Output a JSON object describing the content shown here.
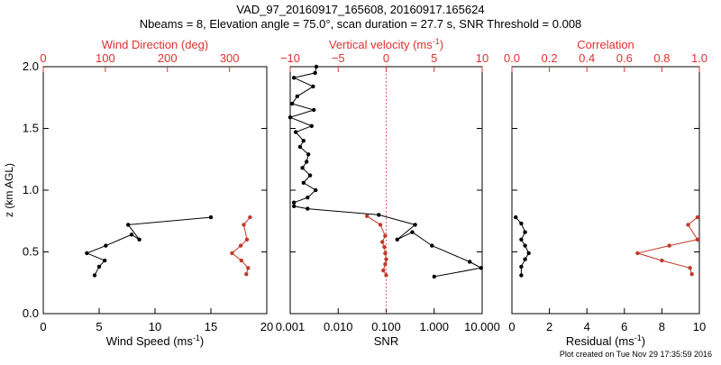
{
  "figure": {
    "title_line1": "VAD_97_20160917_165608, 20160917.165624",
    "title_line2": "Nbeams = 8, Elevation angle = 75.0°, scan duration = 27.7 s, SNR Threshold = 0.008",
    "footer": "Plot created on Tue Nov 29 17:35:59 2016",
    "colors": {
      "black_series": "#000000",
      "red_series": "#c0392b",
      "red_axis": "#e03030"
    }
  },
  "chart_data": [
    {
      "type": "line",
      "panel": "wind",
      "ylabel": "z (km AGL)",
      "ylim": [
        0,
        2
      ],
      "yticks": [
        0.0,
        0.5,
        1.0,
        1.5,
        2.0
      ],
      "ytick_labels": [
        "0.0",
        "0.5",
        "1.0",
        "1.5",
        "2.0"
      ],
      "bottom_axis": {
        "label": "Wind Speed (ms",
        "label_sup": "-1",
        "label_tail": ")",
        "lim": [
          0,
          20
        ],
        "ticks": [
          0,
          5,
          10,
          15,
          20
        ],
        "tick_labels": [
          "0",
          "5",
          "10",
          "15",
          "20"
        ]
      },
      "top_axis": {
        "label": "Wind Direction (deg)",
        "lim": [
          0,
          360
        ],
        "ticks": [
          0,
          100,
          200,
          300
        ],
        "tick_labels": [
          "0",
          "100",
          "200",
          "300"
        ]
      },
      "series": [
        {
          "axis": "bottom",
          "color": "black",
          "points": [
            [
              15.0,
              0.78
            ],
            [
              7.6,
              0.72
            ],
            [
              8.6,
              0.6
            ],
            [
              7.9,
              0.64
            ],
            [
              5.6,
              0.55
            ],
            [
              3.9,
              0.49
            ],
            [
              5.5,
              0.43
            ],
            [
              5.0,
              0.38
            ],
            [
              4.6,
              0.31
            ]
          ]
        },
        {
          "axis": "top",
          "color": "red",
          "points": [
            [
              333,
              0.78
            ],
            [
              323,
              0.72
            ],
            [
              328,
              0.6
            ],
            [
              318,
              0.55
            ],
            [
              304,
              0.49
            ],
            [
              319,
              0.43
            ],
            [
              330,
              0.37
            ],
            [
              327,
              0.32
            ]
          ]
        }
      ]
    },
    {
      "type": "line",
      "panel": "snr",
      "bottom_axis": {
        "label": "SNR",
        "scale": "log",
        "lim": [
          0.001,
          10
        ],
        "ticks": [
          0.001,
          0.01,
          0.1,
          1,
          10
        ],
        "tick_labels": [
          "0.001",
          "0.010",
          "0.100",
          "1.000",
          "10.000"
        ]
      },
      "top_axis": {
        "label": "Vertical velocity (ms",
        "label_sup": "-1",
        "label_tail": ")",
        "lim": [
          -10,
          10
        ],
        "ticks": [
          -10,
          -5,
          0,
          5,
          10
        ],
        "tick_labels": [
          "−10",
          "−5",
          "0",
          "5",
          "10"
        ],
        "zero_line": "dotted"
      },
      "series": [
        {
          "axis": "bottom",
          "color": "black",
          "points": [
            [
              0.0035,
              2.0
            ],
            [
              0.0033,
              1.95
            ],
            [
              0.0012,
              1.91
            ],
            [
              0.003,
              1.84
            ],
            [
              0.0014,
              1.76
            ],
            [
              0.0011,
              1.7
            ],
            [
              0.0031,
              1.65
            ],
            [
              0.001,
              1.59
            ],
            [
              0.0028,
              1.52
            ],
            [
              0.0013,
              1.47
            ],
            [
              0.0019,
              1.4
            ],
            [
              0.0016,
              1.35
            ],
            [
              0.0024,
              1.29
            ],
            [
              0.0022,
              1.23
            ],
            [
              0.0018,
              1.18
            ],
            [
              0.0026,
              1.12
            ],
            [
              0.0019,
              1.06
            ],
            [
              0.0034,
              1.0
            ],
            [
              0.0023,
              0.94
            ],
            [
              0.0012,
              0.9
            ],
            [
              0.0012,
              0.87
            ],
            [
              0.0023,
              0.85
            ],
            [
              0.07,
              0.8
            ],
            [
              0.4,
              0.72
            ],
            [
              0.17,
              0.6
            ],
            [
              0.35,
              0.66
            ],
            [
              0.9,
              0.55
            ],
            [
              5.5,
              0.42
            ],
            [
              9.5,
              0.37
            ],
            [
              1.0,
              0.3
            ]
          ]
        },
        {
          "axis": "top",
          "color": "red",
          "points": [
            [
              -2.0,
              0.79
            ],
            [
              -0.6,
              0.72
            ],
            [
              -0.1,
              0.63
            ],
            [
              -0.4,
              0.58
            ],
            [
              -0.2,
              0.54
            ],
            [
              -0.1,
              0.49
            ],
            [
              0.0,
              0.44
            ],
            [
              -0.1,
              0.4
            ],
            [
              -0.3,
              0.35
            ],
            [
              0.0,
              0.31
            ]
          ]
        }
      ]
    },
    {
      "type": "line",
      "panel": "residual",
      "bottom_axis": {
        "label": "Residual (ms",
        "label_sup": "-1",
        "label_tail": ")",
        "lim": [
          0,
          10
        ],
        "ticks": [
          0,
          2,
          4,
          6,
          8,
          10
        ],
        "tick_labels": [
          "0",
          "2",
          "4",
          "6",
          "8",
          "10"
        ]
      },
      "top_axis": {
        "label": "Correlation",
        "lim": [
          0,
          1
        ],
        "ticks": [
          0,
          0.2,
          0.4,
          0.6,
          0.8,
          1.0
        ],
        "tick_labels": [
          "0.0",
          "0.2",
          "0.4",
          "0.6",
          "0.8",
          "1.0"
        ]
      },
      "series": [
        {
          "axis": "bottom",
          "color": "black",
          "points": [
            [
              0.2,
              0.78
            ],
            [
              0.5,
              0.73
            ],
            [
              0.7,
              0.66
            ],
            [
              0.5,
              0.6
            ],
            [
              0.7,
              0.55
            ],
            [
              0.9,
              0.49
            ],
            [
              0.7,
              0.44
            ],
            [
              0.5,
              0.38
            ],
            [
              0.5,
              0.31
            ]
          ]
        },
        {
          "axis": "top",
          "color": "red",
          "points": [
            [
              0.99,
              0.78
            ],
            [
              0.94,
              0.72
            ],
            [
              0.99,
              0.6
            ],
            [
              0.84,
              0.55
            ],
            [
              0.67,
              0.49
            ],
            [
              0.8,
              0.43
            ],
            [
              0.95,
              0.37
            ],
            [
              0.96,
              0.32
            ]
          ]
        }
      ]
    }
  ]
}
